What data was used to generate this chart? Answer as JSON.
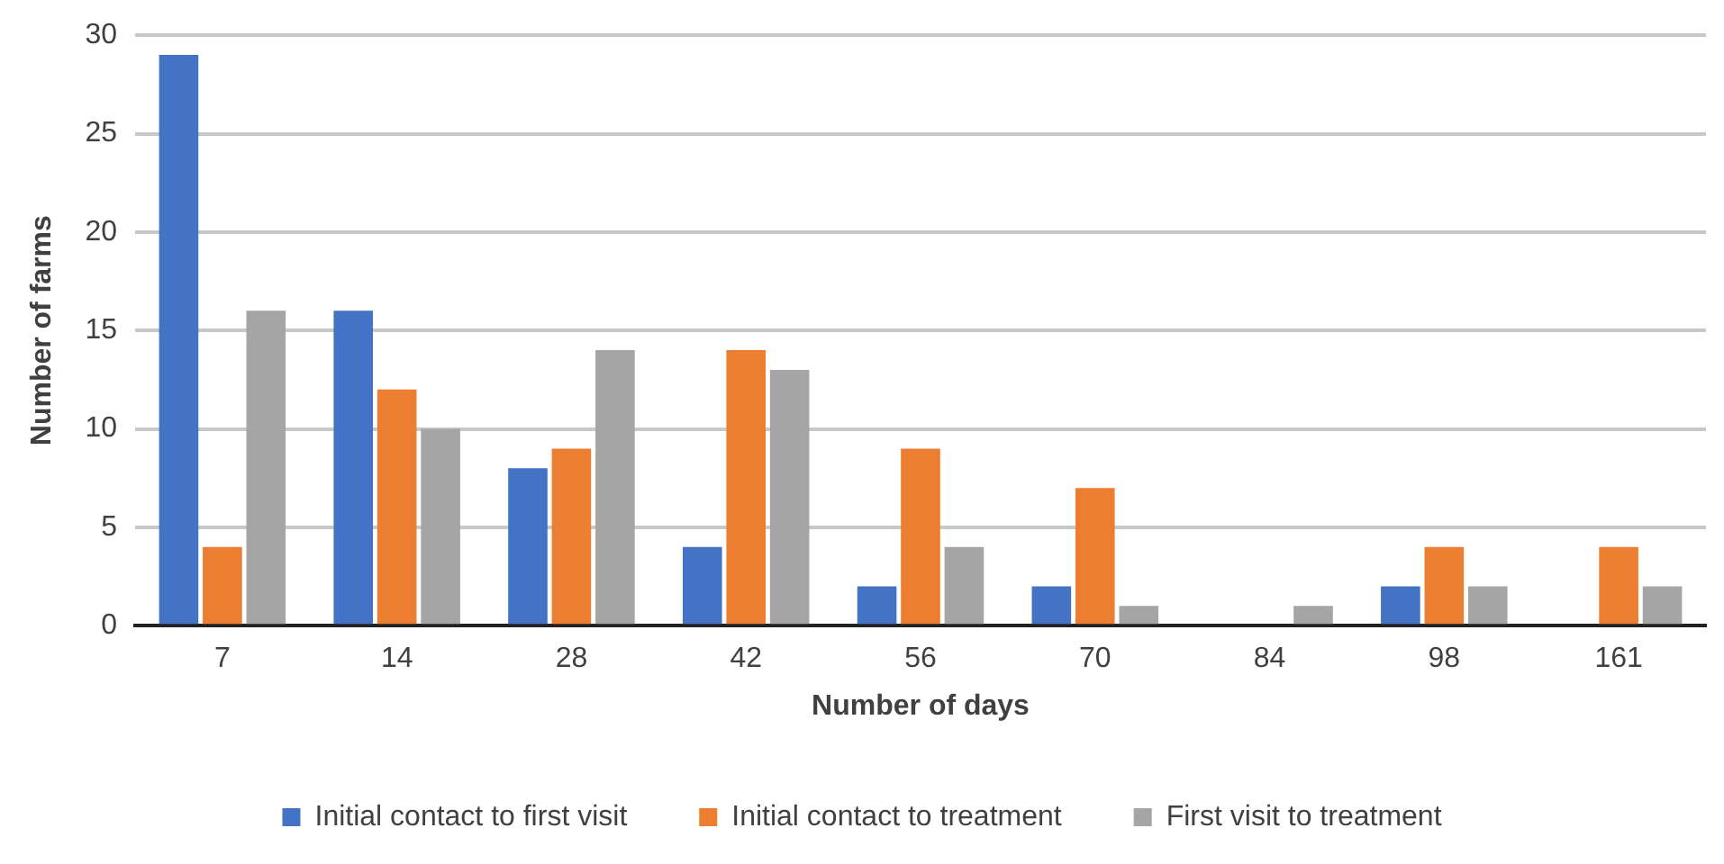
{
  "chart_data": {
    "type": "bar",
    "xlabel": "Number of days",
    "ylabel": "Number of farms",
    "categories": [
      "7",
      "14",
      "28",
      "42",
      "56",
      "70",
      "84",
      "98",
      "161"
    ],
    "series": [
      {
        "name": "Initial contact to first visit",
        "color": "#4472c4",
        "values": [
          29,
          16,
          8,
          4,
          2,
          2,
          0,
          2,
          0
        ]
      },
      {
        "name": "Initial contact to treatment",
        "color": "#ed7d31",
        "values": [
          4,
          12,
          9,
          14,
          9,
          7,
          0,
          4,
          4
        ]
      },
      {
        "name": "First visit to treatment",
        "color": "#a5a5a5",
        "values": [
          16,
          10,
          14,
          13,
          4,
          1,
          1,
          2,
          2
        ]
      }
    ],
    "ylim": [
      0,
      30
    ],
    "yticks": [
      0,
      5,
      10,
      15,
      20,
      25,
      30
    ],
    "grid": "y",
    "legend": "bottom"
  }
}
